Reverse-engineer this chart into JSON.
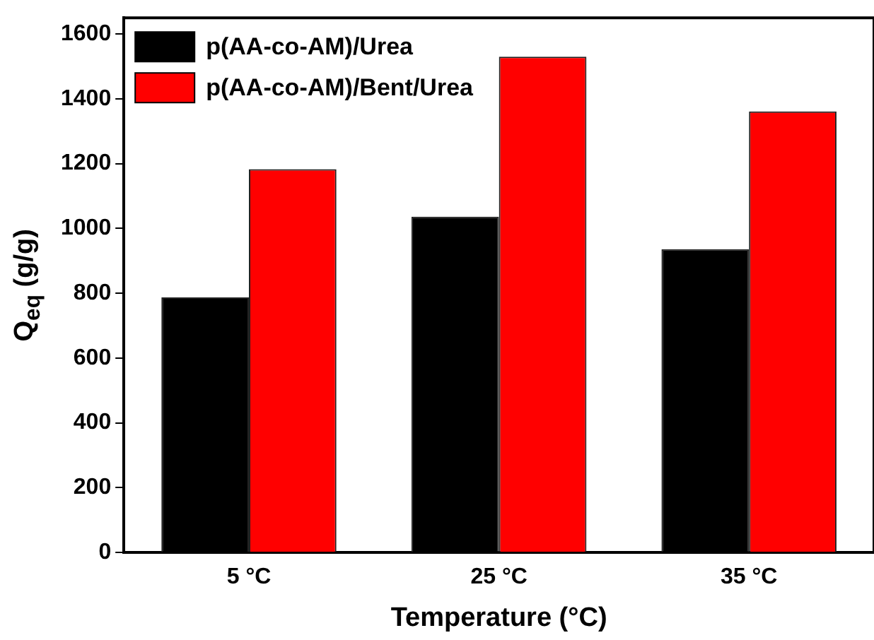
{
  "chart_data": {
    "type": "bar",
    "xlabel": "Temperature (°C)",
    "ylabel": "Q$_{eq}$ (g/g)",
    "categories": [
      "5 °C",
      "25 °C",
      "35 °C"
    ],
    "series": [
      {
        "name": "p(AA-co-AM)/Urea",
        "color": "#000000",
        "values": [
          787,
          1036,
          936
        ]
      },
      {
        "name": "p(AA-co-AM)/Bent/Urea",
        "color": "#ff0000",
        "values": [
          1183,
          1530,
          1361
        ]
      }
    ],
    "ylim": [
      0,
      1650
    ],
    "yticks": [
      0,
      200,
      400,
      600,
      800,
      1000,
      1200,
      1400,
      1600
    ],
    "grid": false,
    "legend": "top left"
  }
}
